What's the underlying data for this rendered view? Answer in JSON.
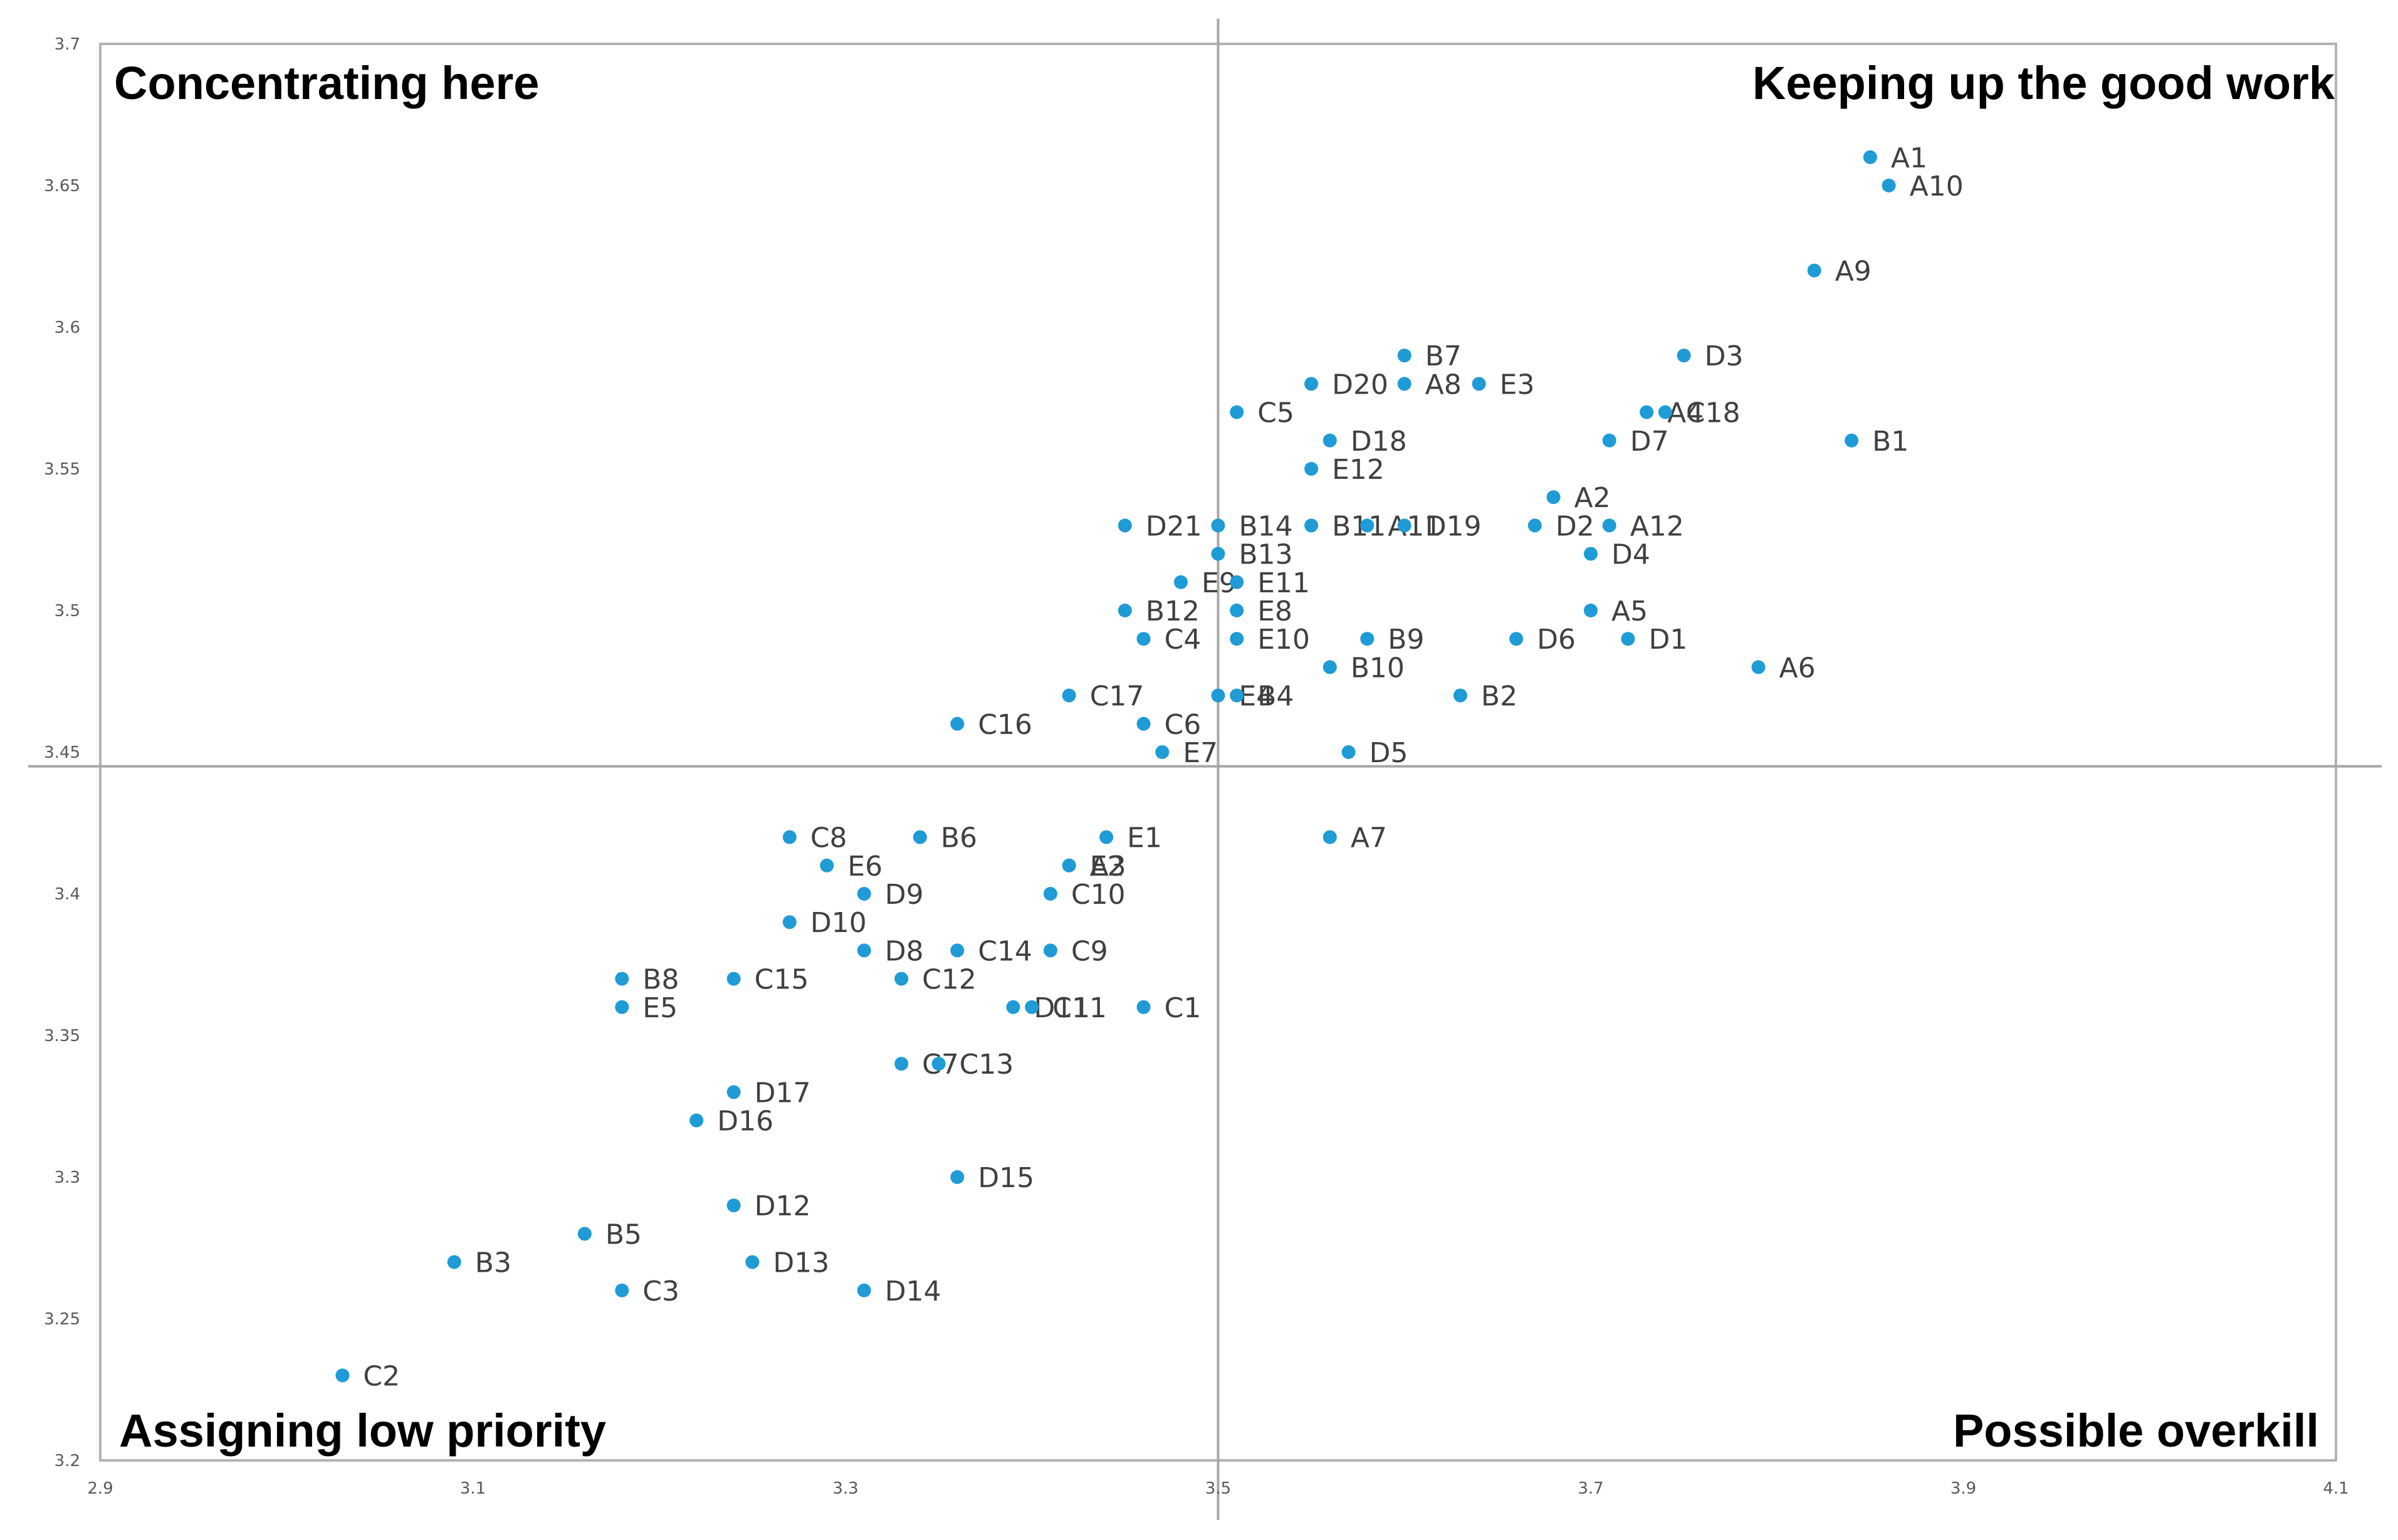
{
  "chart_data": {
    "type": "scatter",
    "xlim": [
      2.9,
      4.1
    ],
    "ylim": [
      3.2,
      3.7
    ],
    "x_ticks": [
      "2.9",
      "3.1",
      "3.3",
      "3.5",
      "3.7",
      "3.9",
      "4.1"
    ],
    "y_ticks": [
      "3.2",
      "3.25",
      "3.3",
      "3.35",
      "3.4",
      "3.45",
      "3.5",
      "3.55",
      "3.6",
      "3.65",
      "3.7"
    ],
    "x_divider": 3.5,
    "y_divider": 3.445,
    "quadrants": {
      "top_left": "Concentrating here",
      "top_right": "Keeping up the good work",
      "bottom_left": "Assigning low priority",
      "bottom_right": "Possible overkill"
    },
    "marker_color": "#1f9bd6",
    "points": [
      {
        "label": "A1",
        "x": 3.85,
        "y": 3.66
      },
      {
        "label": "A10",
        "x": 3.86,
        "y": 3.65
      },
      {
        "label": "A9",
        "x": 3.82,
        "y": 3.62
      },
      {
        "label": "D3",
        "x": 3.75,
        "y": 3.59
      },
      {
        "label": "B7",
        "x": 3.6,
        "y": 3.59
      },
      {
        "label": "D20",
        "x": 3.55,
        "y": 3.58
      },
      {
        "label": "A8",
        "x": 3.6,
        "y": 3.58
      },
      {
        "label": "E3",
        "x": 3.64,
        "y": 3.58
      },
      {
        "label": "C5",
        "x": 3.51,
        "y": 3.57
      },
      {
        "label": "A4",
        "x": 3.73,
        "y": 3.57
      },
      {
        "label": "C18",
        "x": 3.74,
        "y": 3.57
      },
      {
        "label": "D18",
        "x": 3.56,
        "y": 3.56
      },
      {
        "label": "D7",
        "x": 3.71,
        "y": 3.56
      },
      {
        "label": "B1",
        "x": 3.84,
        "y": 3.56
      },
      {
        "label": "E12",
        "x": 3.55,
        "y": 3.55
      },
      {
        "label": "A2",
        "x": 3.68,
        "y": 3.54
      },
      {
        "label": "D21",
        "x": 3.45,
        "y": 3.53
      },
      {
        "label": "B14",
        "x": 3.5,
        "y": 3.53
      },
      {
        "label": "B11",
        "x": 3.55,
        "y": 3.53
      },
      {
        "label": "A11",
        "x": 3.58,
        "y": 3.53
      },
      {
        "label": "D19",
        "x": 3.6,
        "y": 3.53
      },
      {
        "label": "D2",
        "x": 3.67,
        "y": 3.53
      },
      {
        "label": "A12",
        "x": 3.71,
        "y": 3.53
      },
      {
        "label": "B13",
        "x": 3.5,
        "y": 3.52
      },
      {
        "label": "D4",
        "x": 3.7,
        "y": 3.52
      },
      {
        "label": "E9",
        "x": 3.48,
        "y": 3.51
      },
      {
        "label": "E11",
        "x": 3.51,
        "y": 3.51
      },
      {
        "label": "B12",
        "x": 3.45,
        "y": 3.5
      },
      {
        "label": "E8",
        "x": 3.51,
        "y": 3.5
      },
      {
        "label": "A5",
        "x": 3.7,
        "y": 3.5
      },
      {
        "label": "C4",
        "x": 3.46,
        "y": 3.49
      },
      {
        "label": "E10",
        "x": 3.51,
        "y": 3.49
      },
      {
        "label": "B9",
        "x": 3.58,
        "y": 3.49
      },
      {
        "label": "D6",
        "x": 3.66,
        "y": 3.49
      },
      {
        "label": "D1",
        "x": 3.72,
        "y": 3.49
      },
      {
        "label": "B10",
        "x": 3.56,
        "y": 3.48
      },
      {
        "label": "A6",
        "x": 3.79,
        "y": 3.48
      },
      {
        "label": "C17",
        "x": 3.42,
        "y": 3.47
      },
      {
        "label": "E4",
        "x": 3.5,
        "y": 3.47
      },
      {
        "label": "B4",
        "x": 3.51,
        "y": 3.47
      },
      {
        "label": "B2",
        "x": 3.63,
        "y": 3.47
      },
      {
        "label": "C16",
        "x": 3.36,
        "y": 3.46
      },
      {
        "label": "C6",
        "x": 3.46,
        "y": 3.46
      },
      {
        "label": "E7",
        "x": 3.47,
        "y": 3.45
      },
      {
        "label": "D5",
        "x": 3.57,
        "y": 3.45
      },
      {
        "label": "C8",
        "x": 3.27,
        "y": 3.42
      },
      {
        "label": "B6",
        "x": 3.34,
        "y": 3.42
      },
      {
        "label": "E1",
        "x": 3.44,
        "y": 3.42
      },
      {
        "label": "A7",
        "x": 3.56,
        "y": 3.42
      },
      {
        "label": "E6",
        "x": 3.29,
        "y": 3.41
      },
      {
        "label": "A3",
        "x": 3.42,
        "y": 3.41
      },
      {
        "label": "E2",
        "x": 3.42,
        "y": 3.41
      },
      {
        "label": "D9",
        "x": 3.31,
        "y": 3.4
      },
      {
        "label": "C10",
        "x": 3.41,
        "y": 3.4
      },
      {
        "label": "D10",
        "x": 3.27,
        "y": 3.39
      },
      {
        "label": "D8",
        "x": 3.31,
        "y": 3.38
      },
      {
        "label": "C14",
        "x": 3.36,
        "y": 3.38
      },
      {
        "label": "C9",
        "x": 3.41,
        "y": 3.38
      },
      {
        "label": "B8",
        "x": 3.18,
        "y": 3.37
      },
      {
        "label": "C15",
        "x": 3.24,
        "y": 3.37
      },
      {
        "label": "C12",
        "x": 3.33,
        "y": 3.37
      },
      {
        "label": "E5",
        "x": 3.18,
        "y": 3.36
      },
      {
        "label": "D11",
        "x": 3.39,
        "y": 3.36
      },
      {
        "label": "C11",
        "x": 3.4,
        "y": 3.36
      },
      {
        "label": "C1",
        "x": 3.46,
        "y": 3.36
      },
      {
        "label": "C7",
        "x": 3.33,
        "y": 3.34
      },
      {
        "label": "C13",
        "x": 3.35,
        "y": 3.34
      },
      {
        "label": "D17",
        "x": 3.24,
        "y": 3.33
      },
      {
        "label": "D16",
        "x": 3.22,
        "y": 3.32
      },
      {
        "label": "D15",
        "x": 3.36,
        "y": 3.3
      },
      {
        "label": "D12",
        "x": 3.24,
        "y": 3.29
      },
      {
        "label": "B5",
        "x": 3.16,
        "y": 3.28
      },
      {
        "label": "B3",
        "x": 3.09,
        "y": 3.27
      },
      {
        "label": "D13",
        "x": 3.25,
        "y": 3.27
      },
      {
        "label": "C3",
        "x": 3.18,
        "y": 3.26
      },
      {
        "label": "D14",
        "x": 3.31,
        "y": 3.26
      },
      {
        "label": "C2",
        "x": 3.03,
        "y": 3.23
      }
    ]
  }
}
